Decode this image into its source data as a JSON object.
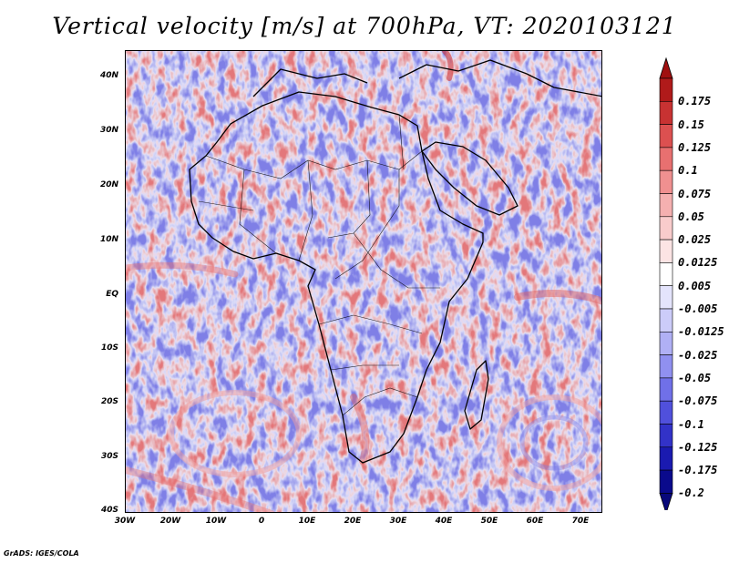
{
  "title": "Vertical velocity [m/s] at 700hPa, VT: 2020103121",
  "credit": "GrADS: IGES/COLA",
  "map": {
    "lon_range": [
      -30,
      75
    ],
    "lat_range": [
      -40,
      45
    ],
    "lat_ticks": [
      {
        "label": "40N",
        "lat": 40
      },
      {
        "label": "30N",
        "lat": 30
      },
      {
        "label": "20N",
        "lat": 20
      },
      {
        "label": "10N",
        "lat": 10
      },
      {
        "label": "EQ",
        "lat": 0
      },
      {
        "label": "10S",
        "lat": -10
      },
      {
        "label": "20S",
        "lat": -20
      },
      {
        "label": "30S",
        "lat": -30
      },
      {
        "label": "40S",
        "lat": -40
      }
    ],
    "lon_ticks": [
      {
        "label": "30W",
        "lon": -30
      },
      {
        "label": "20W",
        "lon": -20
      },
      {
        "label": "10W",
        "lon": -10
      },
      {
        "label": "0",
        "lon": 0
      },
      {
        "label": "10E",
        "lon": 10
      },
      {
        "label": "20E",
        "lon": 20
      },
      {
        "label": "30E",
        "lon": 30
      },
      {
        "label": "40E",
        "lon": 40
      },
      {
        "label": "50E",
        "lon": 50
      },
      {
        "label": "60E",
        "lon": 60
      },
      {
        "label": "70E",
        "lon": 70
      }
    ]
  },
  "colorbar": {
    "levels": [
      {
        "label": "0.175",
        "color": "#b01a1a"
      },
      {
        "label": "0.15",
        "color": "#c83232"
      },
      {
        "label": "0.125",
        "color": "#dc5050"
      },
      {
        "label": "0.1",
        "color": "#e87070"
      },
      {
        "label": "0.075",
        "color": "#f09090"
      },
      {
        "label": "0.05",
        "color": "#f5b0b0"
      },
      {
        "label": "0.025",
        "color": "#f9cccc"
      },
      {
        "label": "0.0125",
        "color": "#fce4e4"
      },
      {
        "label": "0.005",
        "color": "#ffffff"
      },
      {
        "label": "-0.005",
        "color": "#e4e4fc"
      },
      {
        "label": "-0.0125",
        "color": "#ccccf9"
      },
      {
        "label": "-0.025",
        "color": "#b0b0f5"
      },
      {
        "label": "-0.05",
        "color": "#9090f0"
      },
      {
        "label": "-0.075",
        "color": "#7070e8"
      },
      {
        "label": "-0.1",
        "color": "#5050dc"
      },
      {
        "label": "-0.125",
        "color": "#3232c8"
      },
      {
        "label": "-0.175",
        "color": "#1a1ab0"
      },
      {
        "label": "-0.2",
        "color": "#0a0a8c"
      }
    ],
    "top_triangle_color": "#a01010",
    "bottom_triangle_color": "#08087a"
  }
}
